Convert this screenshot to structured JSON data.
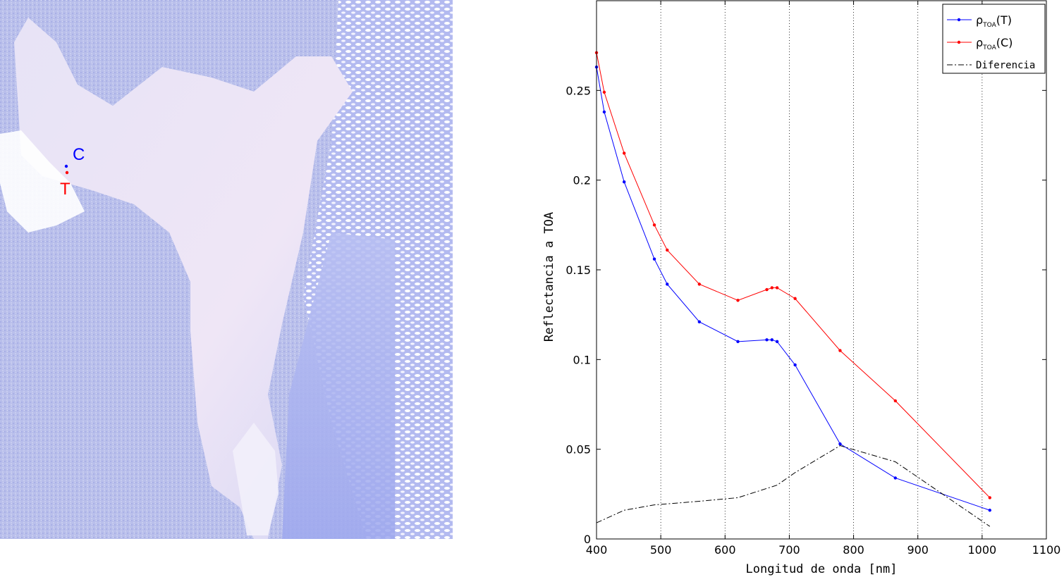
{
  "image_panel": {
    "markers": [
      {
        "label": "C",
        "color": "#0000ff"
      },
      {
        "label": "T",
        "color": "#ff0000"
      }
    ],
    "colors": {
      "water": "#ece6f6",
      "land": "#b7bdea",
      "cloud": "#ffffff",
      "deep": "#9aa4ee"
    }
  },
  "chart_data": {
    "type": "line",
    "xlabel": "Longitud de onda [nm]",
    "ylabel": "Reflectancia a TOA",
    "xlim": [
      400,
      1100
    ],
    "ylim": [
      0,
      0.3
    ],
    "xticks": [
      400,
      500,
      600,
      700,
      800,
      900,
      1000,
      1100
    ],
    "yticks": [
      0,
      0.05,
      0.1,
      0.15,
      0.2,
      0.25
    ],
    "ytick_labels": [
      "0",
      "0.05",
      "0.1",
      "0.15",
      "0.2",
      "0.25"
    ],
    "grid": "vertical dotted",
    "legend_position": "top-right",
    "series": [
      {
        "name": "ρTOA(T)",
        "name_main": "ρ",
        "name_sub": "TOA",
        "name_tail": "(T)",
        "color": "#0000ff",
        "style": "solid",
        "marker": "dot",
        "x": [
          400,
          412,
          443,
          490,
          510,
          560,
          620,
          665,
          673,
          681,
          709,
          779,
          865,
          1012
        ],
        "y": [
          0.263,
          0.238,
          0.199,
          0.156,
          0.142,
          0.121,
          0.11,
          0.111,
          0.111,
          0.11,
          0.097,
          0.053,
          0.034,
          0.016
        ]
      },
      {
        "name": "ρTOA(C)",
        "name_main": "ρ",
        "name_sub": "TOA",
        "name_tail": "(C)",
        "color": "#ff0000",
        "style": "solid",
        "marker": "dot",
        "x": [
          400,
          412,
          443,
          490,
          510,
          560,
          620,
          665,
          673,
          681,
          709,
          779,
          865,
          1012
        ],
        "y": [
          0.271,
          0.249,
          0.215,
          0.175,
          0.161,
          0.142,
          0.133,
          0.139,
          0.14,
          0.14,
          0.134,
          0.105,
          0.077,
          0.023
        ]
      },
      {
        "name": "Diferencia",
        "color": "#000000",
        "style": "dashdot",
        "marker": "none",
        "x": [
          400,
          443,
          490,
          560,
          620,
          681,
          709,
          779,
          865,
          1012
        ],
        "y": [
          0.009,
          0.016,
          0.019,
          0.021,
          0.023,
          0.03,
          0.037,
          0.052,
          0.043,
          0.007
        ]
      }
    ]
  }
}
